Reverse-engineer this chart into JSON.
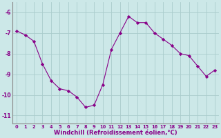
{
  "x": [
    0,
    1,
    2,
    3,
    4,
    5,
    6,
    7,
    8,
    9,
    10,
    11,
    12,
    13,
    14,
    15,
    16,
    17,
    18,
    19,
    20,
    21,
    22,
    23
  ],
  "y": [
    -6.9,
    -7.1,
    -7.4,
    -8.5,
    -9.3,
    -9.7,
    -9.8,
    -10.1,
    -10.6,
    -10.5,
    -9.5,
    -7.8,
    -7.0,
    -6.2,
    -6.5,
    -6.5,
    -7.0,
    -7.3,
    -7.6,
    -8.0,
    -8.1,
    -8.6,
    -9.1,
    -8.8
  ],
  "xlim": [
    -0.5,
    23.5
  ],
  "ylim": [
    -11.4,
    -5.5
  ],
  "yticks": [
    -11,
    -10,
    -9,
    -8,
    -7,
    -6
  ],
  "xticks": [
    0,
    1,
    2,
    3,
    4,
    5,
    6,
    7,
    8,
    9,
    10,
    11,
    12,
    13,
    14,
    15,
    16,
    17,
    18,
    19,
    20,
    21,
    22,
    23
  ],
  "xlabel": "Windchill (Refroidissement éolien,°C)",
  "line_color": "#880088",
  "marker": "D",
  "marker_size": 2.2,
  "bg_color": "#cce8e8",
  "grid_color": "#aacccc",
  "tick_color": "#880088",
  "label_color": "#880088"
}
